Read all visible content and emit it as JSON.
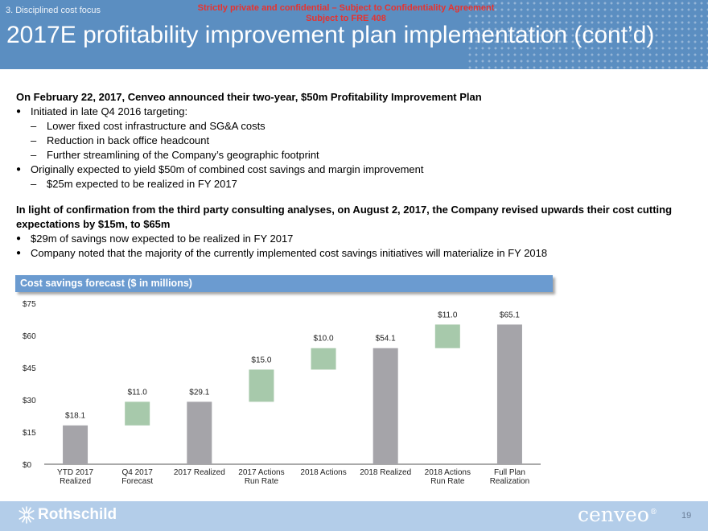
{
  "header": {
    "section": "3. Disciplined cost focus",
    "confidential_line1": "Strictly private and confidential – Subject to Confidentiality Agreement",
    "confidential_line2": "Subject to FRE 408",
    "title": "2017E profitability improvement plan implementation (cont’d)"
  },
  "body": {
    "para1_heading": "On February 22, 2017, Cenveo announced their two-year, $50m Profitability Improvement Plan",
    "bullet1": "Initiated in late Q4 2016 targeting:",
    "bullet1_sub": [
      "Lower fixed cost infrastructure and SG&A costs",
      "Reduction in back office headcount",
      "Further streamlining of the Company’s geographic footprint"
    ],
    "bullet2": "Originally expected to yield $50m of combined cost savings and margin improvement",
    "bullet2_sub": [
      "$25m expected to be realized in FY 2017"
    ],
    "para2_heading": "In light of confirmation from the third party consulting analyses, on August 2, 2017, the Company revised upwards their cost cutting expectations by $15m, to $65m",
    "bullet3": "$29m of savings now expected to be realized in FY 2017",
    "bullet4": "Company noted that the majority of the currently implemented cost savings initiatives will materialize in FY 2018"
  },
  "chart_title": "Cost savings forecast ($ in millions)",
  "chart_data": {
    "type": "bar",
    "subtype": "waterfall",
    "title": "Cost savings forecast ($ in millions)",
    "categories": [
      [
        "YTD 2017",
        "Realized"
      ],
      [
        "Q4 2017",
        "Forecast"
      ],
      [
        "2017 Realized"
      ],
      [
        "2017 Actions",
        "Run Rate"
      ],
      [
        "2018 Actions"
      ],
      [
        "2018 Realized"
      ],
      [
        "2018 Actions",
        "Run Rate"
      ],
      [
        "Full Plan",
        "Realization"
      ]
    ],
    "bars": [
      {
        "kind": "total",
        "base": 0,
        "value": 18.1,
        "label": "$18.1"
      },
      {
        "kind": "increment",
        "base": 18.1,
        "value": 11.0,
        "label": "$11.0"
      },
      {
        "kind": "total",
        "base": 0,
        "value": 29.1,
        "label": "$29.1"
      },
      {
        "kind": "increment",
        "base": 29.1,
        "value": 15.0,
        "label": "$15.0"
      },
      {
        "kind": "increment",
        "base": 44.1,
        "value": 10.0,
        "label": "$10.0"
      },
      {
        "kind": "total",
        "base": 0,
        "value": 54.1,
        "label": "$54.1"
      },
      {
        "kind": "increment",
        "base": 54.1,
        "value": 11.0,
        "label": "$11.0"
      },
      {
        "kind": "total",
        "base": 0,
        "value": 65.1,
        "label": "$65.1"
      }
    ],
    "yticks": [
      0,
      15,
      30,
      45,
      60,
      75
    ],
    "ytick_labels": [
      "$0",
      "$15",
      "$30",
      "$45",
      "$60",
      "$75"
    ],
    "ylim": [
      0,
      75
    ],
    "colors": {
      "total": "#a5a4a9",
      "increment": "#a7c9ab"
    },
    "xlabel": "",
    "ylabel": ""
  },
  "footer": {
    "left_logo": "Rothschild",
    "right_logo": "cenveo",
    "page": "19"
  }
}
